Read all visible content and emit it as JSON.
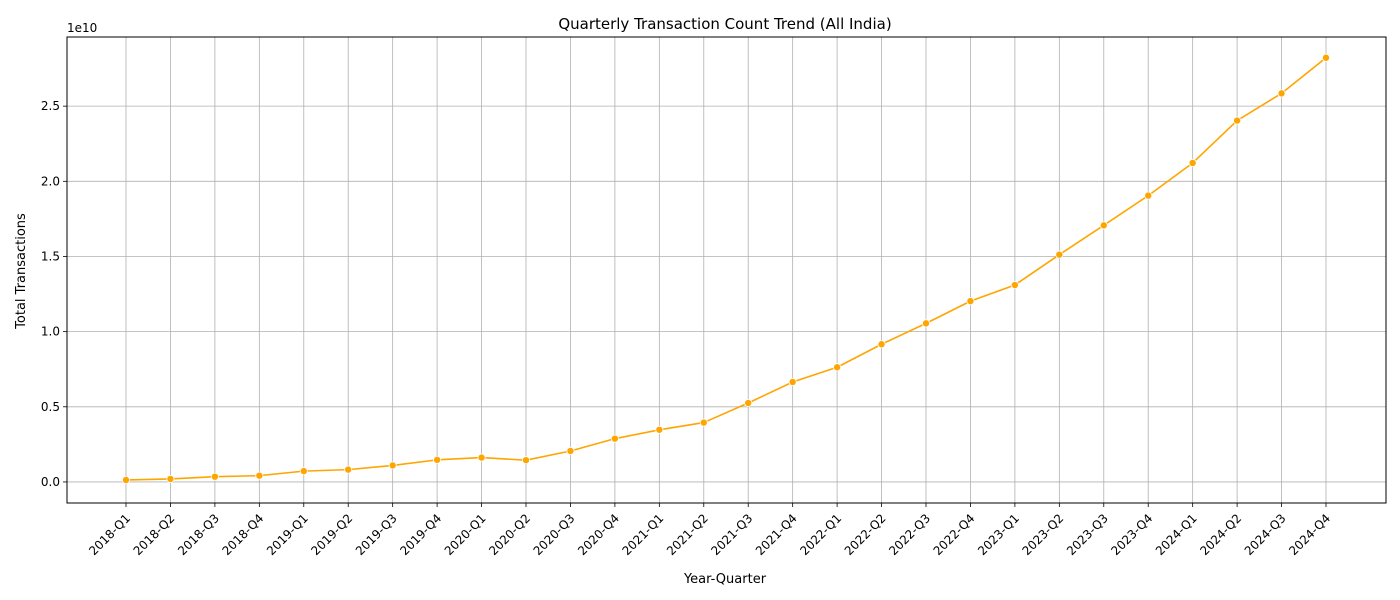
{
  "chart_data": {
    "type": "line",
    "title": "Quarterly Transaction Count Trend (All India)",
    "xlabel": "Year-Quarter",
    "ylabel": "Total Transactions",
    "y_offset_label": "1e10",
    "ylim": [
      -1.4,
      29.6
    ],
    "yticks": [
      0.0,
      0.5,
      1.0,
      1.5,
      2.0,
      2.5
    ],
    "ytick_labels": [
      "0.0",
      "0.5",
      "1.0",
      "1.5",
      "2.0",
      "2.5"
    ],
    "y_scale_factor": 1000000000.0,
    "grid": true,
    "legend": "none",
    "line_color": "#ffa500",
    "categories": [
      "2018-Q1",
      "2018-Q2",
      "2018-Q3",
      "2018-Q4",
      "2019-Q1",
      "2019-Q2",
      "2019-Q3",
      "2019-Q4",
      "2020-Q1",
      "2020-Q2",
      "2020-Q3",
      "2020-Q4",
      "2021-Q1",
      "2021-Q2",
      "2021-Q3",
      "2021-Q4",
      "2022-Q1",
      "2022-Q2",
      "2022-Q3",
      "2022-Q4",
      "2023-Q1",
      "2023-Q2",
      "2023-Q3",
      "2023-Q4",
      "2024-Q1",
      "2024-Q2",
      "2024-Q3",
      "2024-Q4"
    ],
    "series": [
      {
        "values_units": "billions",
        "values": [
          0.13,
          0.2,
          0.35,
          0.42,
          0.72,
          0.82,
          1.1,
          1.47,
          1.62,
          1.45,
          2.06,
          2.88,
          3.47,
          3.95,
          5.25,
          6.65,
          7.63,
          9.16,
          10.55,
          12.03,
          13.1,
          15.12,
          17.07,
          19.05,
          21.22,
          24.04,
          25.85,
          28.22
        ]
      }
    ]
  }
}
